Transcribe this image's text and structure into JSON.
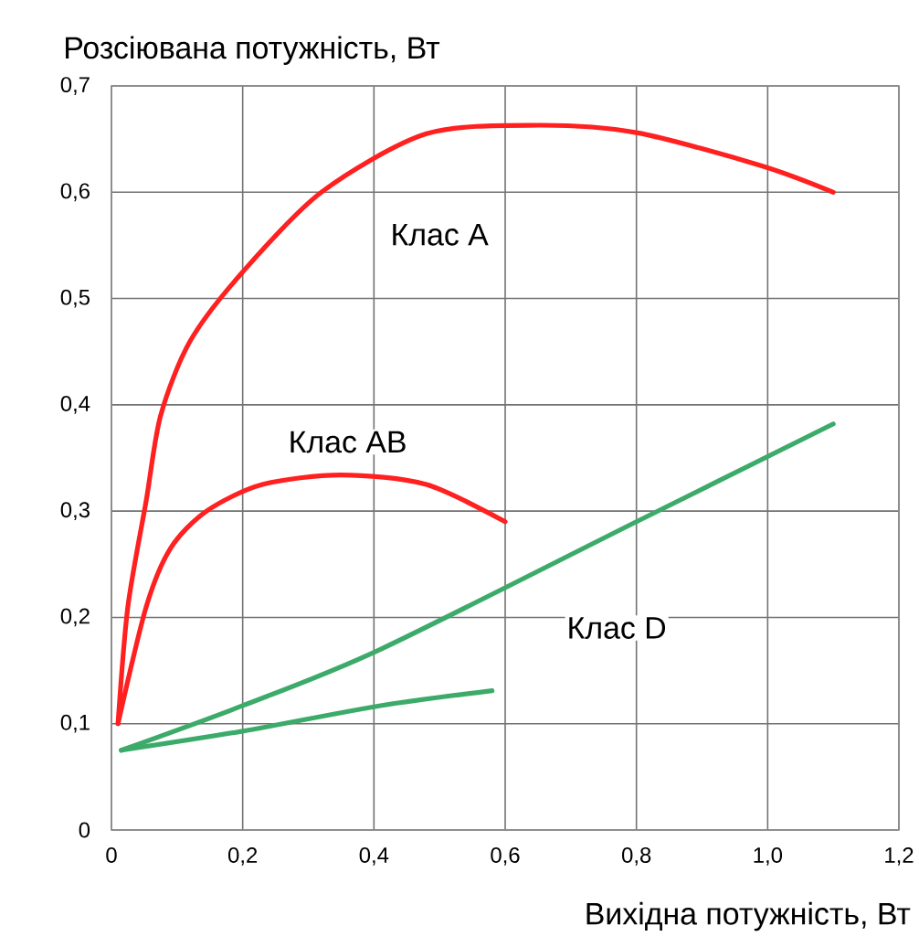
{
  "chart_data": {
    "type": "line",
    "xlabel": "Вихідна потужність, Вт",
    "ylabel": "Розсіювана потужність, Вт",
    "xlim": [
      0,
      1.2
    ],
    "ylim": [
      0,
      0.7
    ],
    "xticks": [
      0,
      {
        "value": 0.2,
        "label": "0,2"
      },
      {
        "value": 0.4,
        "label": "0,4"
      },
      {
        "value": 0.6,
        "label": "0,6"
      },
      {
        "value": 0.8,
        "label": "0,8"
      },
      {
        "value": 1.0,
        "label": "1,0"
      },
      {
        "value": 1.2,
        "label": "1,2"
      }
    ],
    "yticks": [
      0,
      {
        "value": 0.1,
        "label": "0,1"
      },
      {
        "value": 0.2,
        "label": "0,2"
      },
      {
        "value": 0.3,
        "label": "0,3"
      },
      {
        "value": 0.4,
        "label": "0,4"
      },
      {
        "value": 0.5,
        "label": "0,5"
      },
      {
        "value": 0.6,
        "label": "0,6"
      },
      {
        "value": 0.7,
        "label": "0,7"
      }
    ],
    "grid": true,
    "legend": false,
    "marker": "none",
    "line_style": "solid",
    "series": [
      {
        "name": "Клас A",
        "color": "#ff2020",
        "x": [
          0.01,
          0.025,
          0.053,
          0.075,
          0.12,
          0.2,
          0.32,
          0.48,
          0.65,
          0.8,
          0.99,
          1.1
        ],
        "values": [
          0.1,
          0.21,
          0.31,
          0.39,
          0.46,
          0.525,
          0.6,
          0.655,
          0.663,
          0.656,
          0.625,
          0.6
        ]
      },
      {
        "name": "Клас AB",
        "color": "#ff2020",
        "x": [
          0.01,
          0.053,
          0.09,
          0.145,
          0.23,
          0.35,
          0.48,
          0.6
        ],
        "values": [
          0.1,
          0.21,
          0.265,
          0.3,
          0.325,
          0.334,
          0.325,
          0.29
        ]
      },
      {
        "name": "Клас D",
        "color": "#3cab6a",
        "x": [
          0.015,
          0.2,
          0.41,
          0.8,
          1.1
        ],
        "values": [
          0.075,
          0.117,
          0.17,
          0.29,
          0.382
        ]
      },
      {
        "color": "#3cab6a",
        "x": [
          0.015,
          0.2,
          0.41,
          0.58
        ],
        "values": [
          0.075,
          0.093,
          0.117,
          0.131
        ]
      }
    ]
  }
}
